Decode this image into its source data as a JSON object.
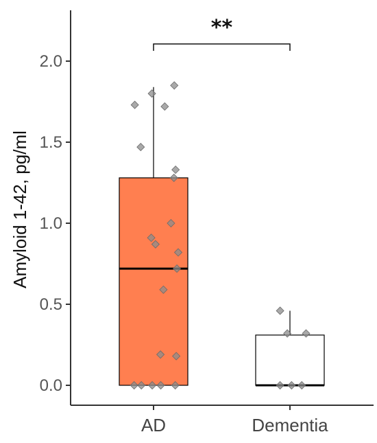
{
  "chart_data": {
    "type": "box",
    "ylabel": "Amyloid 1-42, pg/ml",
    "xlabel": "",
    "ylim": [
      -0.12,
      2.32
    ],
    "yticks": [
      0.0,
      0.5,
      1.0,
      1.5,
      2.0
    ],
    "ytick_labels": [
      "0.0",
      "0.5",
      "1.0",
      "1.5",
      "2.0"
    ],
    "categories": [
      "AD",
      "Dementia"
    ],
    "significance": {
      "label": "**",
      "between": [
        "AD",
        "Dementia"
      ]
    },
    "boxes": [
      {
        "category": "AD",
        "fill": "#ff7f50",
        "whisker_low": 0.0,
        "q1": 0.0,
        "median": 0.72,
        "q3": 1.28,
        "whisker_high": 1.84
      },
      {
        "category": "Dementia",
        "fill": "#ffffff",
        "whisker_low": 0.0,
        "q1": 0.0,
        "median": 0.0,
        "q3": 0.31,
        "whisker_high": 0.46
      }
    ],
    "points": [
      {
        "category": "AD",
        "jitter": 0.63,
        "value": 1.85
      },
      {
        "category": "AD",
        "jitter": -0.05,
        "value": 1.8
      },
      {
        "category": "AD",
        "jitter": -0.57,
        "value": 1.73
      },
      {
        "category": "AD",
        "jitter": 0.34,
        "value": 1.72
      },
      {
        "category": "AD",
        "jitter": -0.39,
        "value": 1.47
      },
      {
        "category": "AD",
        "jitter": 0.67,
        "value": 1.33
      },
      {
        "category": "AD",
        "jitter": 0.62,
        "value": 1.28
      },
      {
        "category": "AD",
        "jitter": 0.53,
        "value": 1.0
      },
      {
        "category": "AD",
        "jitter": -0.07,
        "value": 0.91
      },
      {
        "category": "AD",
        "jitter": 0.06,
        "value": 0.87
      },
      {
        "category": "AD",
        "jitter": 0.75,
        "value": 0.82
      },
      {
        "category": "AD",
        "jitter": 0.71,
        "value": 0.72
      },
      {
        "category": "AD",
        "jitter": 0.3,
        "value": 0.59
      },
      {
        "category": "AD",
        "jitter": 0.21,
        "value": 0.19
      },
      {
        "category": "AD",
        "jitter": 0.69,
        "value": 0.18
      },
      {
        "category": "AD",
        "jitter": -0.59,
        "value": 0.0
      },
      {
        "category": "AD",
        "jitter": -0.37,
        "value": 0.0
      },
      {
        "category": "AD",
        "jitter": -0.04,
        "value": 0.0
      },
      {
        "category": "AD",
        "jitter": 0.22,
        "value": 0.0
      },
      {
        "category": "AD",
        "jitter": 0.66,
        "value": 0.0
      },
      {
        "category": "Dementia",
        "jitter": -0.3,
        "value": 0.46
      },
      {
        "category": "Dementia",
        "jitter": -0.08,
        "value": 0.32
      },
      {
        "category": "Dementia",
        "jitter": 0.49,
        "value": 0.32
      },
      {
        "category": "Dementia",
        "jitter": -0.3,
        "value": 0.0
      },
      {
        "category": "Dementia",
        "jitter": 0.05,
        "value": 0.0
      },
      {
        "category": "Dementia",
        "jitter": 0.36,
        "value": 0.0
      }
    ],
    "colors": {
      "box_outline": "#000000",
      "point_fill": "#8c8c8c",
      "point_stroke": "#6a6a6a",
      "axis": "#333333"
    },
    "grid": false,
    "legend": "none"
  }
}
